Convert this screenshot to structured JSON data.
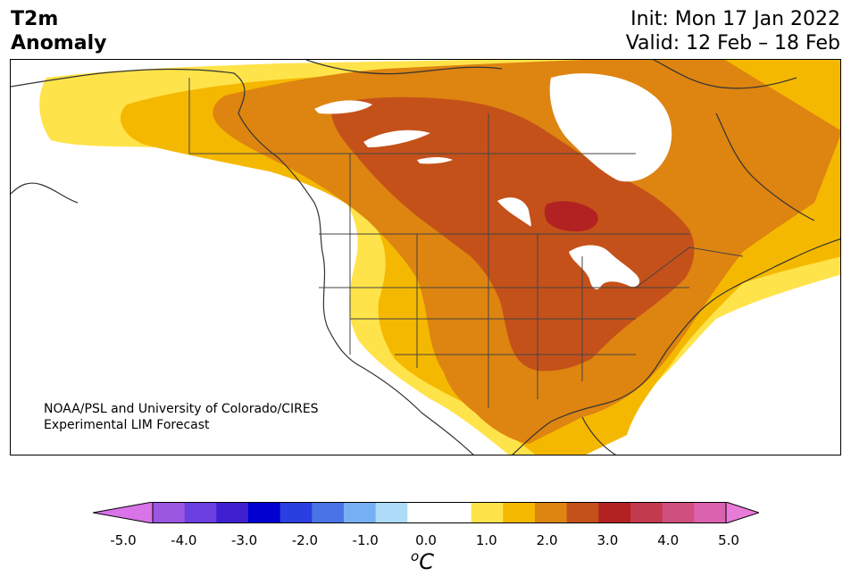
{
  "header": {
    "variable_line1": "T2m",
    "variable_line2": "Anomaly",
    "init_text": "Init: Mon 17 Jan 2022",
    "valid_text": "Valid: 12 Feb – 18 Feb"
  },
  "credit": {
    "line1": "NOAA/PSL and University of Colorado/CIRES",
    "line2": "Experimental LIM Forecast"
  },
  "colorbar": {
    "units_symbol": "o",
    "units_letter": "C",
    "tick_labels": [
      "-5.0",
      "-4.0",
      "-3.0",
      "-2.0",
      "-1.0",
      "0.0",
      "1.0",
      "2.0",
      "3.0",
      "4.0",
      "5.0"
    ],
    "colors": [
      "#9b57e0",
      "#6b3fe0",
      "#3f1fd0",
      "#0000d0",
      "#2a3fe0",
      "#4a74e6",
      "#76b0f2",
      "#aedcf8",
      "#ffffff",
      "#ffffff",
      "#ffe34a",
      "#f5b800",
      "#de8410",
      "#c4511a",
      "#b22222",
      "#c23a4e",
      "#cf4f7e",
      "#db62ae"
    ],
    "extend_low_color": "#d873e8",
    "extend_high_color": "#e87ad8"
  },
  "map": {
    "region": "North America",
    "anomaly_levels": {
      "0.5-1.0": "#ffe34a",
      "1.0-1.5": "#f5b800",
      "1.5-2.0": "#de8410",
      "2.0-2.5": "#c4511a",
      "2.5-3.0": "#b22222"
    }
  }
}
